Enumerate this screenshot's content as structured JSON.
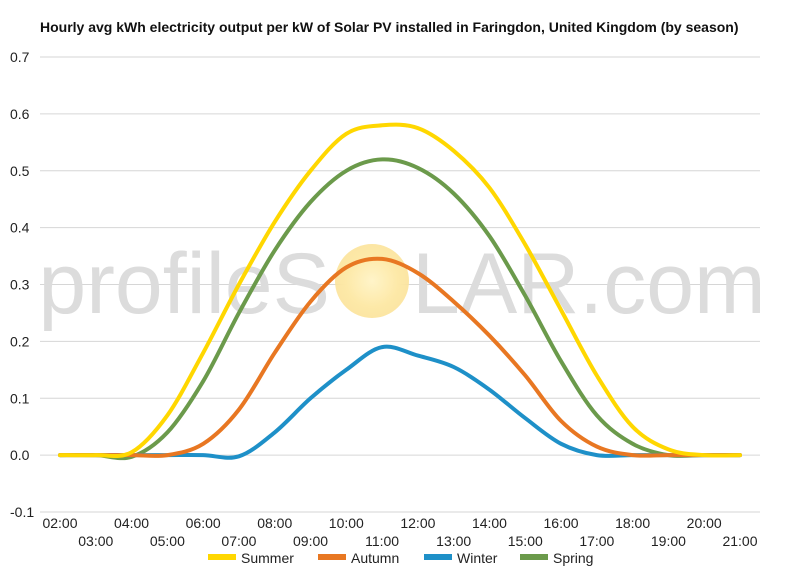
{
  "watermark": {
    "text_left": "profileS",
    "text_right": "LAR.com"
  },
  "chart_data": {
    "type": "line",
    "title": "Hourly avg kWh electricity output per kW of Solar PV installed in Faringdon, United Kingdom (by season)",
    "xlabel": "",
    "ylabel": "",
    "ylim": [
      -0.1,
      0.7
    ],
    "y_ticks": [
      "0.7",
      "0.6",
      "0.5",
      "0.4",
      "0.3",
      "0.2",
      "0.1",
      "0.0",
      "-0.1"
    ],
    "x": [
      2,
      3,
      4,
      5,
      6,
      7,
      8,
      9,
      10,
      11,
      12,
      13,
      14,
      15,
      16,
      17,
      18,
      19,
      20,
      21
    ],
    "x_ticks_upper": [
      "02:00",
      "04:00",
      "06:00",
      "08:00",
      "10:00",
      "12:00",
      "14:00",
      "16:00",
      "18:00",
      "20:00"
    ],
    "x_ticks_lower": [
      "03:00",
      "05:00",
      "07:00",
      "09:00",
      "11:00",
      "13:00",
      "15:00",
      "17:00",
      "19:00",
      "21:00"
    ],
    "grid": true,
    "legend_position": "bottom",
    "series": [
      {
        "name": "Summer",
        "color": "#FFD700",
        "values": [
          0.0,
          0.0,
          0.005,
          0.07,
          0.18,
          0.3,
          0.41,
          0.5,
          0.565,
          0.58,
          0.575,
          0.535,
          0.47,
          0.37,
          0.255,
          0.14,
          0.05,
          0.01,
          0.0,
          0.0
        ]
      },
      {
        "name": "Autumn",
        "color": "#E87722",
        "values": [
          0.0,
          0.0,
          0.0,
          0.0,
          0.02,
          0.08,
          0.18,
          0.27,
          0.33,
          0.345,
          0.32,
          0.27,
          0.21,
          0.14,
          0.06,
          0.015,
          0.0,
          0.0,
          0.0,
          0.0
        ]
      },
      {
        "name": "Winter",
        "color": "#1E90C8",
        "values": [
          0.0,
          0.0,
          0.0,
          0.0,
          0.0,
          -0.002,
          0.04,
          0.1,
          0.15,
          0.19,
          0.175,
          0.155,
          0.115,
          0.065,
          0.02,
          0.0,
          0.0,
          0.0,
          0.0,
          0.0
        ]
      },
      {
        "name": "Spring",
        "color": "#6B9A4B",
        "values": [
          0.0,
          0.0,
          -0.003,
          0.04,
          0.13,
          0.25,
          0.36,
          0.445,
          0.5,
          0.52,
          0.505,
          0.46,
          0.385,
          0.28,
          0.165,
          0.07,
          0.02,
          0.0,
          0.0,
          0.0
        ]
      }
    ]
  }
}
